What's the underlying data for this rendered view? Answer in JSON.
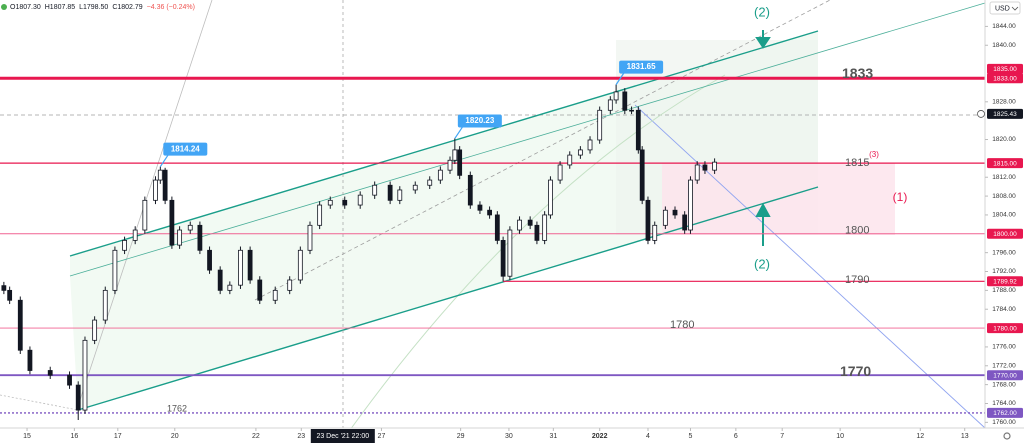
{
  "chart_data": {
    "type": "candlestick",
    "ohlc_header": [
      "O1807.30",
      "H1807.85",
      "L1798.50",
      "C1802.79",
      "−4.36 (−0.24%)"
    ],
    "currency": "USD",
    "candle_color": "#131722",
    "x": [
      0.4,
      1.0,
      2.1,
      3.1,
      5.2,
      7.2,
      8.1,
      8.8,
      9.8,
      10.9,
      11.9,
      12.9,
      14.0,
      15.0,
      16.1,
      16.6,
      17.1,
      17.8,
      18.6,
      19.7,
      20.7,
      21.7,
      22.8,
      23.8,
      24.9,
      25.9,
      26.9,
      28.5,
      30.0,
      31.1,
      32.1,
      33.1,
      34.2,
      35.7,
      37.3,
      38.8,
      40.4,
      41.4,
      43.0,
      44.5,
      45.6,
      46.6,
      47.1,
      47.6,
      48.7,
      49.7,
      50.7,
      51.5,
      52.1,
      52.8,
      53.8,
      54.9,
      55.6,
      56.4,
      57.0,
      58.0,
      59.0,
      60.1,
      61.1,
      62.1,
      63.2,
      63.8,
      64.7,
      65.4,
      66.1,
      66.5,
      67.1,
      67.8,
      68.9,
      69.9,
      70.9,
      71.5,
      72.2,
      73.0,
      74.0
    ],
    "open": [
      1789.0,
      1788.0,
      1785.9,
      1775.3,
      1771.0,
      1770.0,
      1767.9,
      1762.6,
      1777.4,
      1781.7,
      1788.0,
      1796.5,
      1798.6,
      1800.8,
      1807.1,
      1811.4,
      1813.5,
      1807.1,
      1797.6,
      1800.8,
      1801.8,
      1796.5,
      1792.3,
      1788.0,
      1789.1,
      1796.5,
      1790.2,
      1785.9,
      1788.0,
      1790.2,
      1796.5,
      1801.8,
      1806.1,
      1807.1,
      1806.1,
      1808.2,
      1810.3,
      1807.1,
      1809.3,
      1810.3,
      1811.4,
      1813.5,
      1815.6,
      1817.8,
      1812.4,
      1806.1,
      1805.0,
      1804.0,
      1798.6,
      1791.0,
      1800.8,
      1802.9,
      1801.8,
      1798.6,
      1804.0,
      1811.4,
      1814.6,
      1816.7,
      1817.8,
      1819.9,
      1826.2,
      1828.4,
      1830.1,
      1826.2,
      1826.2,
      1817.8,
      1807.1,
      1798.6,
      1801.8,
      1805.0,
      1804.0,
      1800.8,
      1811.4,
      1814.6,
      1813.5
    ],
    "high": [
      1789.8,
      1788.8,
      1786.7,
      1776.1,
      1771.8,
      1770.8,
      1768.7,
      1778.2,
      1782.5,
      1788.8,
      1797.3,
      1799.4,
      1801.6,
      1807.9,
      1812.2,
      1814.24,
      1814.0,
      1807.9,
      1801.6,
      1802.6,
      1802.6,
      1797.3,
      1793.1,
      1789.9,
      1797.3,
      1797.3,
      1791.0,
      1788.8,
      1791.0,
      1797.3,
      1802.6,
      1806.9,
      1807.9,
      1807.9,
      1809.0,
      1811.1,
      1811.1,
      1810.1,
      1811.1,
      1812.2,
      1814.3,
      1816.4,
      1820.23,
      1818.6,
      1813.2,
      1806.9,
      1805.8,
      1804.8,
      1799.4,
      1801.6,
      1803.7,
      1803.7,
      1802.6,
      1804.8,
      1812.2,
      1815.4,
      1817.5,
      1818.6,
      1820.7,
      1827.0,
      1829.2,
      1831.65,
      1830.9,
      1827.0,
      1827.0,
      1818.6,
      1807.9,
      1802.6,
      1805.8,
      1805.8,
      1804.8,
      1812.2,
      1815.4,
      1815.4,
      1816.0
    ],
    "low": [
      1787.2,
      1785.1,
      1774.5,
      1770.2,
      1769.2,
      1767.1,
      1760.5,
      1761.8,
      1776.6,
      1780.9,
      1787.2,
      1795.7,
      1797.8,
      1800.0,
      1806.3,
      1810.6,
      1806.3,
      1796.8,
      1796.8,
      1800.0,
      1795.7,
      1791.5,
      1787.2,
      1787.2,
      1788.3,
      1789.4,
      1785.1,
      1785.1,
      1787.2,
      1789.4,
      1795.7,
      1801.0,
      1805.3,
      1805.3,
      1805.3,
      1807.4,
      1806.3,
      1806.3,
      1808.5,
      1809.5,
      1810.6,
      1812.7,
      1814.8,
      1811.6,
      1805.3,
      1804.2,
      1803.2,
      1797.8,
      1789.92,
      1790.2,
      1800.0,
      1801.0,
      1797.8,
      1797.8,
      1803.2,
      1810.6,
      1813.8,
      1815.9,
      1817.0,
      1819.1,
      1825.4,
      1827.6,
      1825.4,
      1825.4,
      1817.0,
      1806.3,
      1797.8,
      1797.8,
      1801.0,
      1803.2,
      1800.0,
      1800.0,
      1810.6,
      1812.7,
      1812.7
    ],
    "close": [
      1788.0,
      1785.9,
      1775.3,
      1771.0,
      1770.0,
      1767.9,
      1762.6,
      1777.4,
      1781.7,
      1788.0,
      1796.5,
      1798.6,
      1800.8,
      1807.1,
      1811.4,
      1813.5,
      1807.1,
      1797.6,
      1800.8,
      1801.8,
      1796.5,
      1792.3,
      1788.0,
      1789.1,
      1796.5,
      1790.2,
      1785.9,
      1788.0,
      1790.2,
      1796.5,
      1801.8,
      1806.1,
      1807.1,
      1806.1,
      1808.2,
      1810.3,
      1807.1,
      1809.3,
      1810.3,
      1811.4,
      1813.5,
      1815.6,
      1817.8,
      1812.4,
      1806.1,
      1805.0,
      1804.0,
      1798.6,
      1791.0,
      1800.8,
      1802.9,
      1801.8,
      1798.6,
      1804.0,
      1811.4,
      1814.6,
      1816.7,
      1817.8,
      1819.9,
      1826.2,
      1828.4,
      1830.1,
      1826.2,
      1826.2,
      1817.8,
      1807.1,
      1798.6,
      1801.8,
      1805.0,
      1804.0,
      1800.8,
      1811.4,
      1814.6,
      1813.5,
      1815.2
    ],
    "xlim": [
      0,
      102
    ],
    "ylim": [
      1758.8,
      1849.6
    ],
    "xticks": [
      {
        "value": 2.8,
        "label": "15"
      },
      {
        "value": 7.7,
        "label": "16"
      },
      {
        "value": 12.2,
        "label": "17"
      },
      {
        "value": 18.1,
        "label": "20"
      },
      {
        "value": 26.5,
        "label": "22"
      },
      {
        "value": 31.2,
        "label": "23"
      },
      {
        "value": 39.5,
        "label": "27"
      },
      {
        "value": 47.7,
        "label": "29"
      },
      {
        "value": 52.7,
        "label": "30"
      },
      {
        "value": 57.3,
        "label": "31"
      },
      {
        "value": 62.1,
        "label": "2022"
      },
      {
        "value": 67.1,
        "label": "4"
      },
      {
        "value": 71.5,
        "label": "5"
      },
      {
        "value": 76.2,
        "label": "6"
      },
      {
        "value": 81.0,
        "label": "7"
      },
      {
        "value": 87.0,
        "label": "10"
      },
      {
        "value": 95.3,
        "label": "12"
      },
      {
        "value": 99.9,
        "label": "13"
      }
    ],
    "yticks": [
      {
        "value": 1760,
        "label": "1760.00"
      },
      {
        "value": 1764,
        "label": "1764.00"
      },
      {
        "value": 1768,
        "label": "1768.00"
      },
      {
        "value": 1772,
        "label": "1772.00"
      },
      {
        "value": 1776,
        "label": "1776.00"
      },
      {
        "value": 1784,
        "label": "1784.00"
      },
      {
        "value": 1788,
        "label": "1788.00"
      },
      {
        "value": 1792,
        "label": "1792.00"
      },
      {
        "value": 1796,
        "label": "1796.00"
      },
      {
        "value": 1804,
        "label": "1804.00"
      },
      {
        "value": 1808,
        "label": "1808.00"
      },
      {
        "value": 1812,
        "label": "1812.00"
      },
      {
        "value": 1820,
        "label": "1820.00"
      },
      {
        "value": 1828,
        "label": "1828.00"
      },
      {
        "value": 1840,
        "label": "1840.00"
      },
      {
        "value": 1844,
        "label": "1844.00"
      }
    ],
    "crosshair": {
      "x": 35.5,
      "label": "23 Dec '21  22:00"
    },
    "callouts": [
      {
        "x": 16.6,
        "value": 1814.24
      },
      {
        "x": 47.1,
        "value": 1820.23
      },
      {
        "x": 63.8,
        "value": 1831.65
      }
    ],
    "levels": [
      {
        "value": 1833,
        "label": "1833",
        "color": "#e8174f"
      },
      {
        "value": 1815,
        "label": "1815",
        "color": "#e8174f"
      },
      {
        "value": 1800,
        "label": "1800",
        "color": "#f06292"
      },
      {
        "value": 1789.92,
        "label": "1790",
        "color": "#e8174f"
      },
      {
        "value": 1780,
        "label": "1780",
        "color": "#f06292"
      },
      {
        "value": 1770,
        "label": "1770",
        "color": "#7e57c2"
      },
      {
        "value": 1762,
        "label": "1762",
        "color": "#7e57c2"
      }
    ],
    "price_tags": [
      {
        "value": 1835,
        "label": "1835.00",
        "color": "#e8174f"
      },
      {
        "value": 1833,
        "label": "1833.00",
        "color": "#e8174f"
      },
      {
        "value": 1825.43,
        "label": "1825.43",
        "color": "#131722"
      },
      {
        "value": 1815,
        "label": "1815.00",
        "color": "#e8174f"
      },
      {
        "value": 1800,
        "label": "1800.00",
        "color": "#e8174f"
      },
      {
        "value": 1789.92,
        "label": "1789.92",
        "color": "#e8174f"
      },
      {
        "value": 1780,
        "label": "1780.00",
        "color": "#e8174f"
      },
      {
        "value": 1770,
        "label": "1770.00",
        "color": "#7e57c2"
      },
      {
        "value": 1762,
        "label": "1762.00",
        "color": "#7e57c2"
      }
    ],
    "annotations": [
      "(2)",
      "(2)",
      "(1)",
      "(3)"
    ]
  }
}
